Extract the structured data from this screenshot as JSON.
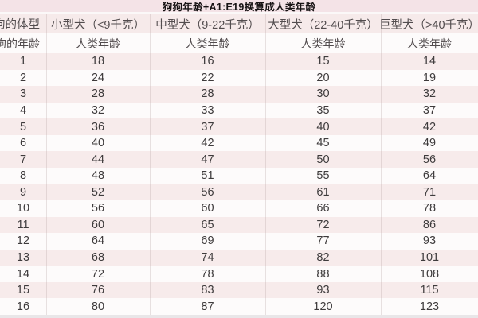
{
  "title": "狗狗年龄+A1:E19换算成人类年龄",
  "colors": {
    "title-bg": "#f4e3e7",
    "header-pink": "#f6eaea",
    "row-pink": "#f7ebeb",
    "row-white": "#fdfbfb",
    "bottom-strip": "#e9e6e8",
    "title-text": "#171314",
    "header-text": "#524c4e",
    "cell-text": "#3e3b3c"
  },
  "chart_data": {
    "type": "table",
    "title": "狗狗年龄+A1:E19换算成人类年龄",
    "column_groups": [
      "狗的体型",
      "小型犬（<9千克）",
      "中型犬（9-22千克）",
      "大型犬（22-40千克）",
      "巨型犬（>40千克）"
    ],
    "sub_headers": [
      "狗的年龄",
      "人类年龄",
      "人类年龄",
      "人类年龄",
      "人类年龄"
    ],
    "rows": [
      [
        1,
        18,
        16,
        15,
        14
      ],
      [
        2,
        24,
        22,
        20,
        19
      ],
      [
        3,
        28,
        28,
        30,
        32
      ],
      [
        4,
        32,
        33,
        35,
        37
      ],
      [
        5,
        36,
        37,
        40,
        42
      ],
      [
        6,
        40,
        42,
        45,
        49
      ],
      [
        7,
        44,
        47,
        50,
        56
      ],
      [
        8,
        48,
        51,
        55,
        64
      ],
      [
        9,
        52,
        56,
        61,
        71
      ],
      [
        10,
        56,
        60,
        66,
        78
      ],
      [
        11,
        60,
        65,
        72,
        86
      ],
      [
        12,
        64,
        69,
        77,
        93
      ],
      [
        13,
        68,
        74,
        82,
        101
      ],
      [
        14,
        72,
        78,
        88,
        108
      ],
      [
        15,
        76,
        83,
        93,
        115
      ],
      [
        16,
        80,
        87,
        120,
        123
      ]
    ]
  }
}
